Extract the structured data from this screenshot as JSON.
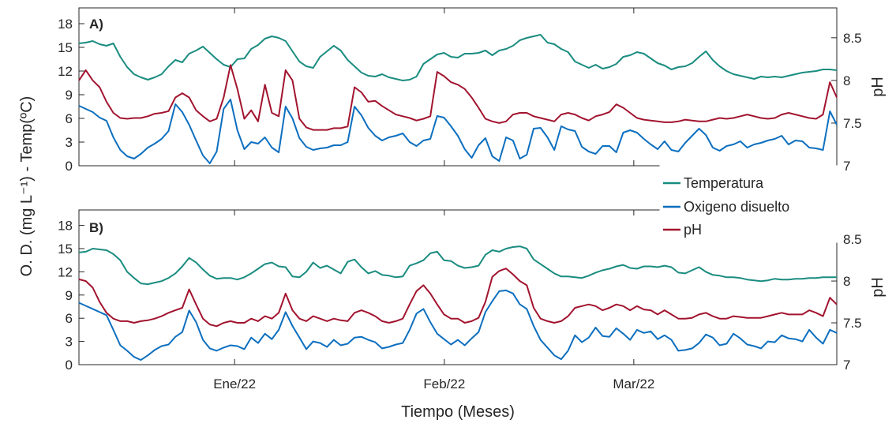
{
  "chart_data": {
    "type": "line",
    "xlabel": "Tiempo (Meses)",
    "ylabel_left": "O. D. (mg L⁻¹) - Temp(ºC)",
    "ylabel_right": "pH",
    "x_ticks": [
      "Ene/22",
      "Feb/22",
      "Mar/22"
    ],
    "x_range": [
      "2021-12-09",
      "2022-03-31"
    ],
    "x_tick_dates": [
      "2022-01-01",
      "2022-02-01",
      "2022-03-01"
    ],
    "y_left_ticks": [
      "0",
      "3",
      "6",
      "9",
      "12",
      "15",
      "18"
    ],
    "y_left_range": [
      0,
      20
    ],
    "y_right_ticks": [
      "7",
      "7.5",
      "8",
      "8.5"
    ],
    "y_right_range": [
      7,
      8.85
    ],
    "legend": {
      "position": "between-panels-right",
      "entries": [
        {
          "label": "Temperatura",
          "color": "#1a8c80"
        },
        {
          "label": "Oxigeno disuelto",
          "color": "#0d6fbf"
        },
        {
          "label": "pH",
          "color": "#a2142f"
        }
      ]
    },
    "panels": [
      {
        "label": "A)",
        "series": [
          {
            "name": "Temperatura",
            "axis": "left",
            "color": "#1a8c80",
            "values": [
              15.5,
              15.6,
              15.8,
              15.4,
              15.2,
              15.5,
              13.8,
              12.5,
              11.6,
              11.2,
              10.9,
              11.2,
              11.6,
              12.6,
              13.4,
              13.1,
              14.2,
              14.6,
              15.1,
              14.3,
              13.5,
              12.8,
              12.5,
              13.5,
              13.6,
              14.8,
              15.3,
              16.1,
              16.4,
              16.2,
              15.8,
              14.5,
              13.2,
              12.6,
              12.4,
              13.8,
              14.5,
              15.2,
              14.6,
              13.4,
              12.6,
              11.8,
              11.4,
              11.3,
              11.6,
              11.2,
              11.0,
              10.8,
              10.9,
              11.3,
              12.9,
              13.5,
              14.1,
              14.3,
              13.8,
              13.7,
              14.2,
              14.2,
              14.3,
              14.6,
              14.0,
              14.6,
              14.8,
              15.2,
              15.9,
              16.2,
              16.4,
              16.6,
              15.6,
              15.4,
              14.8,
              14.4,
              13.2,
              12.8,
              12.4,
              12.8,
              12.3,
              12.5,
              12.9,
              13.8,
              14.0,
              14.4,
              14.2,
              13.6,
              13.0,
              12.7,
              12.2,
              12.5,
              12.6,
              13.0,
              13.8,
              14.5,
              13.4,
              12.6,
              12.0,
              11.6,
              11.4,
              11.2,
              11.0,
              11.3,
              11.2,
              11.3,
              11.2,
              11.4,
              11.6,
              11.8,
              11.9,
              12.0,
              12.2,
              12.2,
              12.1
            ]
          },
          {
            "name": "Oxigeno disuelto",
            "axis": "left",
            "color": "#0d6fbf",
            "values": [
              7.6,
              7.2,
              6.8,
              6.1,
              5.7,
              3.6,
              2.0,
              1.2,
              0.9,
              1.5,
              2.3,
              2.8,
              3.4,
              4.4,
              7.8,
              6.8,
              5.2,
              3.2,
              1.3,
              0.3,
              1.8,
              7.2,
              8.4,
              4.5,
              2.1,
              3.0,
              2.8,
              3.6,
              2.3,
              1.7,
              7.5,
              6.0,
              3.5,
              2.4,
              2.0,
              2.2,
              2.3,
              2.6,
              2.6,
              3.0,
              7.5,
              6.4,
              4.8,
              3.8,
              3.2,
              3.6,
              3.8,
              4.1,
              3.0,
              2.5,
              3.2,
              3.4,
              6.3,
              6.1,
              5.0,
              3.8,
              2.1,
              1.0,
              2.6,
              3.5,
              1.2,
              0.6,
              3.6,
              3.2,
              0.9,
              1.4,
              4.7,
              4.8,
              3.6,
              2.0,
              5.0,
              4.6,
              4.4,
              2.4,
              1.8,
              1.5,
              2.5,
              2.5,
              1.7,
              4.2,
              4.5,
              4.2,
              3.4,
              2.7,
              2.1,
              3.1,
              2.0,
              1.8,
              2.9,
              3.8,
              4.7,
              3.9,
              2.3,
              1.9,
              2.5,
              2.7,
              3.1,
              2.3,
              2.7,
              2.9,
              3.2,
              3.4,
              3.8,
              2.7,
              3.2,
              3.1,
              2.3,
              2.2,
              2.0,
              6.9,
              5.2
            ]
          },
          {
            "name": "pH",
            "axis": "right",
            "color": "#a2142f",
            "values": [
              8.0,
              8.12,
              8.0,
              7.92,
              7.75,
              7.62,
              7.56,
              7.55,
              7.56,
              7.56,
              7.58,
              7.61,
              7.62,
              7.64,
              7.8,
              7.85,
              7.8,
              7.65,
              7.58,
              7.52,
              7.55,
              7.8,
              8.18,
              7.9,
              7.55,
              7.65,
              7.52,
              7.95,
              7.62,
              7.58,
              8.12,
              8.0,
              7.55,
              7.45,
              7.42,
              7.42,
              7.42,
              7.44,
              7.44,
              7.46,
              7.92,
              7.86,
              7.75,
              7.76,
              7.7,
              7.65,
              7.6,
              7.58,
              7.56,
              7.53,
              7.55,
              7.58,
              8.1,
              8.05,
              7.98,
              7.95,
              7.9,
              7.8,
              7.68,
              7.55,
              7.52,
              7.5,
              7.52,
              7.6,
              7.62,
              7.62,
              7.58,
              7.56,
              7.54,
              7.52,
              7.6,
              7.62,
              7.6,
              7.56,
              7.53,
              7.58,
              7.6,
              7.63,
              7.72,
              7.68,
              7.62,
              7.56,
              7.54,
              7.53,
              7.52,
              7.51,
              7.51,
              7.52,
              7.54,
              7.53,
              7.52,
              7.52,
              7.54,
              7.56,
              7.55,
              7.56,
              7.58,
              7.6,
              7.58,
              7.56,
              7.55,
              7.56,
              7.6,
              7.62,
              7.6,
              7.58,
              7.56,
              7.55,
              7.6,
              7.98,
              7.8
            ]
          }
        ]
      },
      {
        "label": "B)",
        "series": [
          {
            "name": "Temperatura",
            "axis": "left",
            "color": "#1a8c80",
            "values": [
              14.5,
              14.6,
              15.0,
              14.9,
              14.8,
              14.3,
              13.5,
              12.0,
              11.2,
              10.5,
              10.4,
              10.6,
              10.8,
              11.2,
              11.8,
              12.7,
              13.8,
              13.2,
              12.3,
              11.5,
              11.1,
              11.2,
              11.2,
              11.0,
              11.3,
              11.8,
              12.4,
              13.0,
              13.2,
              12.7,
              12.6,
              11.4,
              11.3,
              12.0,
              13.2,
              12.5,
              12.8,
              12.3,
              11.8,
              13.3,
              13.6,
              12.6,
              11.8,
              12.1,
              11.6,
              11.5,
              11.3,
              11.4,
              12.8,
              13.1,
              13.5,
              14.4,
              14.6,
              13.5,
              13.4,
              12.8,
              12.5,
              12.6,
              12.8,
              14.2,
              14.8,
              14.6,
              15.0,
              15.2,
              15.3,
              15.0,
              13.6,
              13.0,
              12.4,
              11.8,
              11.4,
              11.4,
              11.3,
              11.2,
              11.5,
              11.9,
              12.2,
              12.4,
              12.7,
              12.9,
              12.5,
              12.4,
              12.7,
              12.7,
              12.6,
              12.8,
              12.6,
              11.9,
              11.8,
              12.2,
              12.6,
              12.0,
              11.6,
              11.5,
              11.3,
              11.3,
              11.2,
              11.0,
              10.9,
              10.8,
              10.9,
              11.1,
              11.0,
              11.0,
              11.1,
              11.1,
              11.2,
              11.2,
              11.3,
              11.3,
              11.3
            ]
          },
          {
            "name": "Oxigeno disuelto",
            "axis": "left",
            "color": "#0d6fbf",
            "values": [
              8.0,
              7.6,
              7.2,
              6.8,
              6.4,
              4.5,
              2.5,
              1.8,
              1.0,
              0.6,
              1.2,
              1.9,
              2.4,
              2.6,
              3.6,
              4.2,
              7.0,
              5.5,
              3.2,
              2.1,
              1.8,
              2.2,
              2.5,
              2.4,
              2.0,
              3.5,
              2.8,
              4.0,
              3.3,
              4.5,
              6.8,
              5.0,
              3.5,
              2.0,
              3.0,
              2.8,
              2.3,
              3.2,
              2.5,
              2.7,
              3.5,
              3.6,
              3.2,
              2.9,
              2.1,
              2.3,
              2.6,
              2.8,
              4.5,
              6.6,
              7.2,
              5.5,
              4.0,
              3.3,
              2.6,
              3.2,
              2.5,
              3.4,
              4.2,
              6.8,
              8.2,
              9.5,
              9.6,
              9.2,
              7.8,
              7.2,
              5.0,
              3.2,
              2.2,
              1.2,
              0.7,
              1.8,
              3.8,
              2.9,
              3.5,
              4.8,
              3.7,
              3.6,
              4.7,
              4.0,
              3.2,
              4.5,
              4.1,
              4.3,
              3.3,
              3.8,
              3.2,
              1.8,
              1.9,
              2.1,
              2.8,
              3.9,
              3.5,
              2.5,
              2.7,
              4.0,
              3.4,
              2.6,
              2.4,
              2.1,
              3.0,
              2.9,
              3.8,
              3.4,
              3.3,
              3.0,
              4.5,
              3.5,
              2.7,
              4.5,
              4.1
            ]
          },
          {
            "name": "pH",
            "axis": "right",
            "color": "#a2142f",
            "values": [
              8.02,
              8.0,
              7.92,
              7.75,
              7.62,
              7.55,
              7.52,
              7.52,
              7.5,
              7.52,
              7.53,
              7.55,
              7.58,
              7.62,
              7.65,
              7.68,
              7.9,
              7.72,
              7.55,
              7.48,
              7.46,
              7.5,
              7.52,
              7.5,
              7.5,
              7.55,
              7.52,
              7.58,
              7.55,
              7.62,
              7.85,
              7.65,
              7.55,
              7.52,
              7.58,
              7.55,
              7.52,
              7.55,
              7.53,
              7.52,
              7.62,
              7.65,
              7.62,
              7.58,
              7.52,
              7.5,
              7.52,
              7.55,
              7.72,
              7.88,
              7.95,
              7.85,
              7.72,
              7.6,
              7.55,
              7.55,
              7.5,
              7.52,
              7.56,
              7.75,
              8.05,
              8.12,
              8.15,
              8.08,
              8.0,
              7.95,
              7.68,
              7.55,
              7.52,
              7.5,
              7.52,
              7.58,
              7.68,
              7.7,
              7.72,
              7.7,
              7.65,
              7.68,
              7.72,
              7.7,
              7.65,
              7.7,
              7.66,
              7.65,
              7.6,
              7.65,
              7.6,
              7.55,
              7.55,
              7.56,
              7.6,
              7.62,
              7.58,
              7.55,
              7.55,
              7.58,
              7.57,
              7.56,
              7.56,
              7.56,
              7.58,
              7.6,
              7.62,
              7.6,
              7.6,
              7.6,
              7.65,
              7.62,
              7.58,
              7.8,
              7.72
            ]
          }
        ]
      }
    ]
  }
}
